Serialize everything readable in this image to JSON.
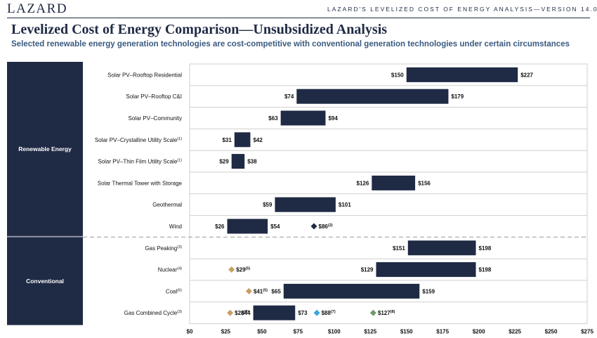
{
  "header": {
    "logo": "LAZARD",
    "top_label": "LAZARD'S LEVELIZED COST OF ENERGY ANALYSIS—VERSION 14.0",
    "title": "Levelized Cost of Energy Comparison—Unsubsidized Analysis",
    "subtitle": "Selected renewable energy generation technologies are cost-competitive with conventional generation technologies under certain circumstances"
  },
  "colors": {
    "navy": "#1f2a44",
    "gold": "#c8a062",
    "blue": "#3aa5dc",
    "green": "#6f9a6b",
    "grid": "#cfcfcf"
  },
  "chart_data": {
    "type": "bar",
    "orientation": "horizontal-floating",
    "xlim": [
      0,
      275
    ],
    "ticks": [
      0,
      25,
      50,
      75,
      100,
      125,
      150,
      175,
      200,
      225,
      250,
      275
    ],
    "tick_labels": [
      "$0",
      "$25",
      "$50",
      "$75",
      "$100",
      "$125",
      "$150",
      "$175",
      "$200",
      "$225",
      "$250",
      "$275"
    ],
    "groups": [
      {
        "name": "Renewable Energy",
        "rows": [
          0,
          7
        ]
      },
      {
        "name": "Conventional",
        "rows": [
          8,
          11
        ]
      }
    ],
    "rows": [
      {
        "category": "Solar PV–Rooftop Residential",
        "sup": "",
        "low": 150,
        "high": 227,
        "low_label": "$150",
        "high_label": "$227",
        "markers": []
      },
      {
        "category": "Solar PV–Rooftop C&I",
        "sup": "",
        "low": 74,
        "high": 179,
        "low_label": "$74",
        "high_label": "$179",
        "markers": []
      },
      {
        "category": "Solar PV–Community",
        "sup": "",
        "low": 63,
        "high": 94,
        "low_label": "$63",
        "high_label": "$94",
        "markers": []
      },
      {
        "category": "Solar PV–Crystalline Utility Scale",
        "sup": "(1)",
        "low": 31,
        "high": 42,
        "low_label": "$31",
        "high_label": "$42",
        "markers": []
      },
      {
        "category": "Solar PV–Thin Film Utility Scale",
        "sup": "(1)",
        "low": 29,
        "high": 38,
        "low_label": "$29",
        "high_label": "$38",
        "markers": []
      },
      {
        "category": "Solar Thermal Tower with Storage",
        "sup": "",
        "low": 126,
        "high": 156,
        "low_label": "$126",
        "high_label": "$156",
        "markers": []
      },
      {
        "category": "Geothermal",
        "sup": "",
        "low": 59,
        "high": 101,
        "low_label": "$59",
        "high_label": "$101",
        "markers": []
      },
      {
        "category": "Wind",
        "sup": "",
        "low": 26,
        "high": 54,
        "low_label": "$26",
        "high_label": "$54",
        "markers": [
          {
            "value": 86,
            "label": "$86",
            "sup": "(2)",
            "color": "navy"
          }
        ]
      },
      {
        "category": "Gas Peaking",
        "sup": "(3)",
        "low": 151,
        "high": 198,
        "low_label": "$151",
        "high_label": "$198",
        "markers": []
      },
      {
        "category": "Nuclear",
        "sup": "(4)",
        "low": 129,
        "high": 198,
        "low_label": "$129",
        "high_label": "$198",
        "markers": [
          {
            "value": 29,
            "label": "$29",
            "sup": "(5)",
            "color": "gold"
          }
        ]
      },
      {
        "category": "Coal",
        "sup": "(6)",
        "low": 65,
        "high": 159,
        "low_label": "$65",
        "high_label": "$159",
        "markers": [
          {
            "value": 41,
            "label": "$41",
            "sup": "(5)",
            "color": "gold"
          }
        ]
      },
      {
        "category": "Gas Combined Cycle",
        "sup": "(3)",
        "low": 44,
        "high": 73,
        "low_label": "$44",
        "high_label": "$73",
        "markers": [
          {
            "value": 28,
            "label": "$28",
            "sup": "(5)",
            "color": "gold"
          },
          {
            "value": 88,
            "label": "$88",
            "sup": "(7)",
            "color": "blue"
          },
          {
            "value": 127,
            "label": "$127",
            "sup": "(8)",
            "color": "green"
          }
        ]
      }
    ]
  }
}
